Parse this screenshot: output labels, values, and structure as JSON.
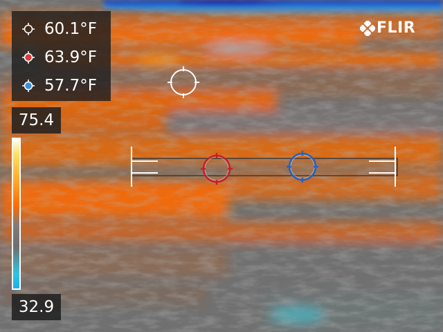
{
  "camera": {
    "brand": "FLIR"
  },
  "measurements": [
    {
      "label": "60.1°F",
      "marker": "center-spot-crosshair-icon",
      "color": "#ffffff"
    },
    {
      "label": "63.9°F",
      "marker": "hot-spot-crosshair-icon",
      "color": "#e23a3a"
    },
    {
      "label": "57.7°F",
      "marker": "cold-spot-crosshair-icon",
      "color": "#3a8ee2"
    }
  ],
  "scale": {
    "max": "75.4",
    "min": "32.9",
    "palette": "iron-grey"
  },
  "colors": {
    "hot_marker": "#c81e28",
    "cold_marker": "#1e64c8",
    "center_marker": "#ffffff",
    "panel": "#1e1e1e"
  }
}
